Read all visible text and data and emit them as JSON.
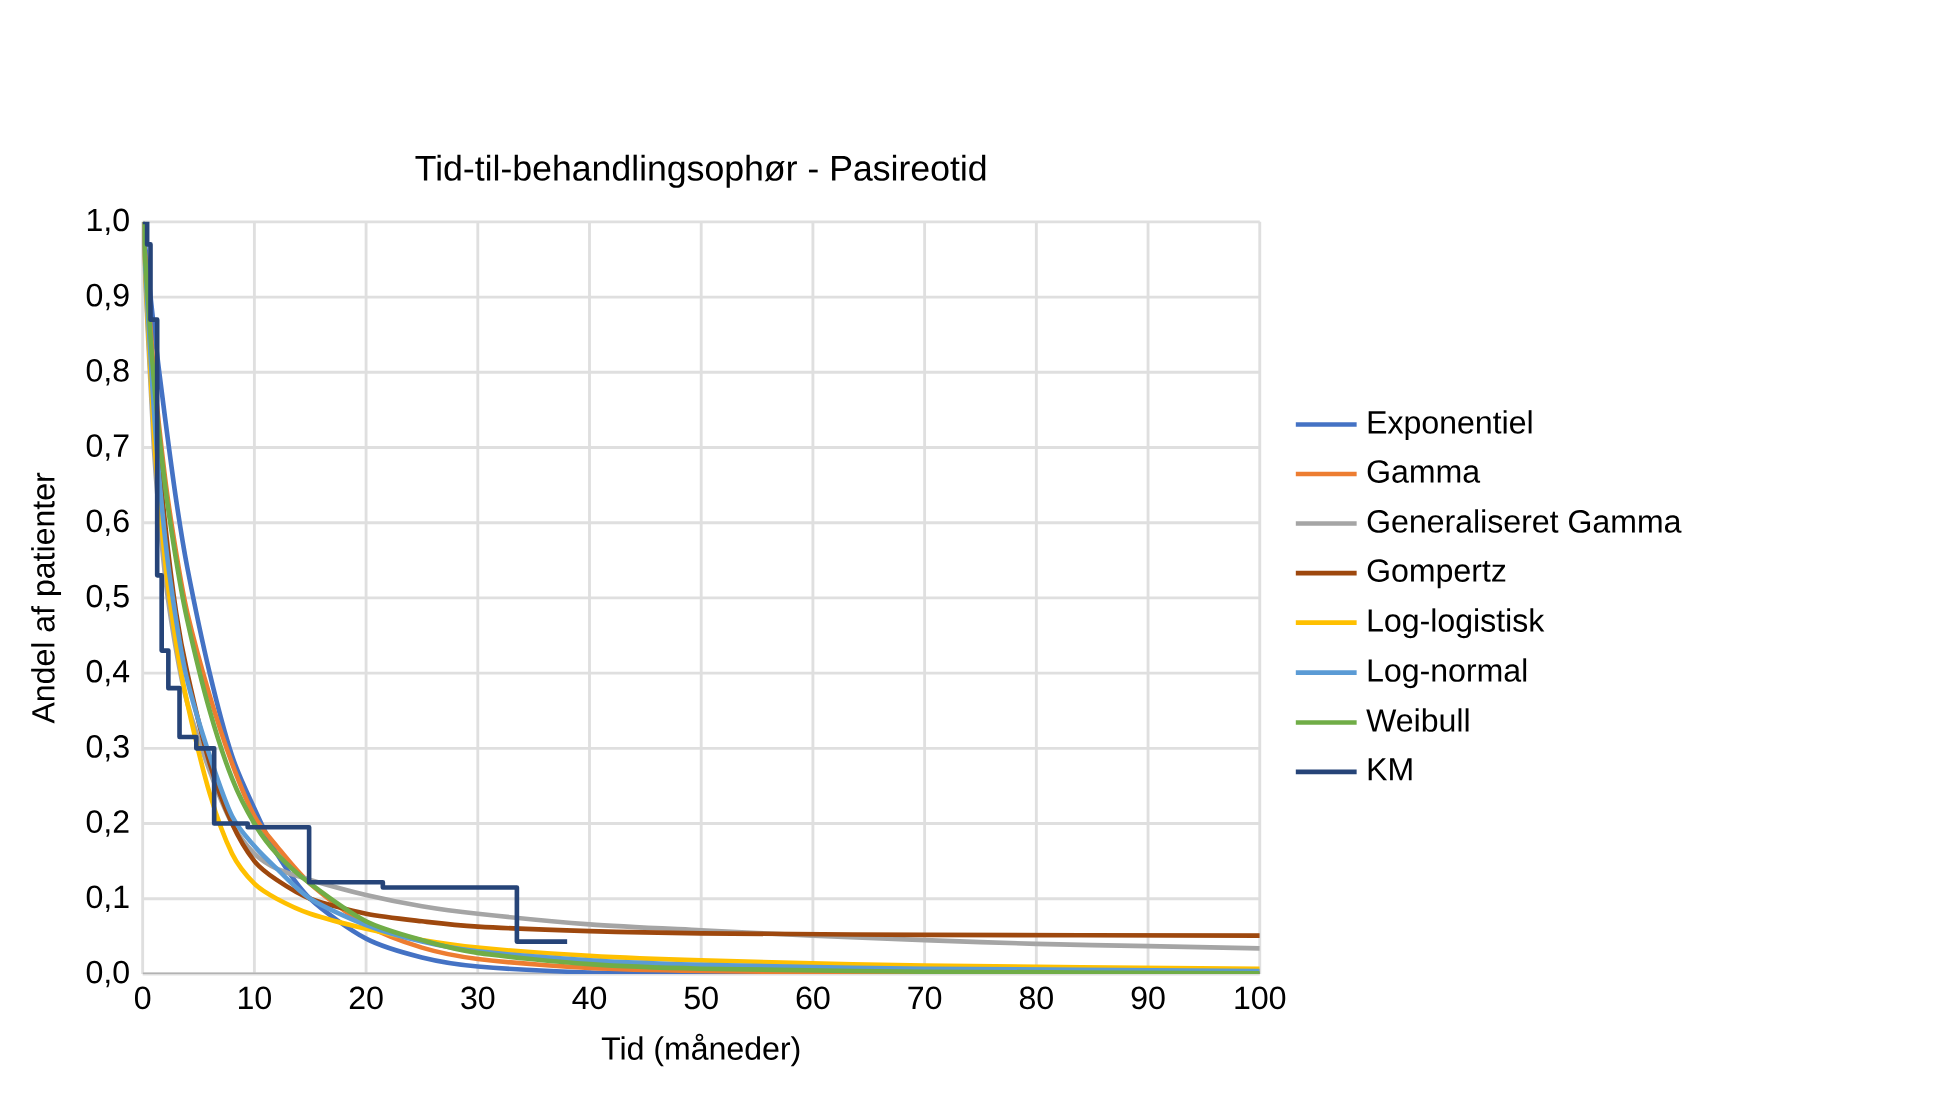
{
  "chart_data": {
    "type": "line",
    "title": "Tid-til-behandlingsophør - Pasireotid",
    "xlabel": "Tid (måneder)",
    "ylabel": "Andel af patienter",
    "xlim": [
      0,
      100
    ],
    "ylim": [
      0,
      1
    ],
    "grid": true,
    "legend": "right",
    "marker": "none",
    "xticks": [
      0,
      10,
      20,
      30,
      40,
      50,
      60,
      70,
      80,
      90,
      100
    ],
    "yticks": [
      {
        "value": 0,
        "label": "0,0"
      },
      {
        "value": 0.1,
        "label": "0,1"
      },
      {
        "value": 0.2,
        "label": "0,2"
      },
      {
        "value": 0.3,
        "label": "0,3"
      },
      {
        "value": 0.4,
        "label": "0,4"
      },
      {
        "value": 0.5,
        "label": "0,5"
      },
      {
        "value": 0.6,
        "label": "0,6"
      },
      {
        "value": 0.7,
        "label": "0,7"
      },
      {
        "value": 0.8,
        "label": "0,8"
      },
      {
        "value": 0.9,
        "label": "0,9"
      },
      {
        "value": 1,
        "label": "1,0"
      }
    ],
    "series": [
      {
        "name": "Exponentiel",
        "color": "#4472c4",
        "x": [
          0,
          1,
          2,
          3,
          4,
          6,
          8,
          10,
          12,
          15,
          20,
          25,
          30,
          40,
          50,
          70,
          100
        ],
        "values": [
          1,
          0.86,
          0.74,
          0.63,
          0.54,
          0.4,
          0.29,
          0.22,
          0.16,
          0.1,
          0.047,
          0.022,
          0.01,
          0.002,
          0.001,
          0,
          0
        ]
      },
      {
        "name": "Gamma",
        "color": "#ed7d31",
        "x": [
          0,
          1,
          2,
          3,
          4,
          6,
          8,
          10,
          12,
          15,
          20,
          25,
          30,
          40,
          50,
          70,
          100
        ],
        "values": [
          1,
          0.8,
          0.66,
          0.56,
          0.48,
          0.37,
          0.28,
          0.21,
          0.17,
          0.12,
          0.065,
          0.035,
          0.02,
          0.008,
          0.004,
          0.001,
          0
        ]
      },
      {
        "name": "Generaliseret Gamma",
        "color": "#a5a5a5",
        "x": [
          0,
          1,
          2,
          3,
          4,
          6,
          8,
          10,
          12,
          15,
          20,
          25,
          30,
          40,
          50,
          60,
          70,
          80,
          90,
          100
        ],
        "values": [
          1,
          0.7,
          0.53,
          0.43,
          0.36,
          0.27,
          0.2,
          0.16,
          0.14,
          0.125,
          0.105,
          0.09,
          0.08,
          0.066,
          0.058,
          0.051,
          0.045,
          0.04,
          0.037,
          0.034
        ]
      },
      {
        "name": "Gompertz",
        "color": "#9e480e",
        "x": [
          0,
          1,
          2,
          3,
          4,
          6,
          8,
          10,
          12,
          15,
          20,
          25,
          30,
          40,
          50,
          70,
          100
        ],
        "values": [
          1,
          0.76,
          0.6,
          0.48,
          0.4,
          0.28,
          0.2,
          0.15,
          0.125,
          0.1,
          0.08,
          0.07,
          0.063,
          0.057,
          0.054,
          0.052,
          0.051
        ]
      },
      {
        "name": "Log-logistisk",
        "color": "#ffc000",
        "x": [
          0,
          1,
          2,
          3,
          4,
          6,
          8,
          10,
          12,
          15,
          20,
          25,
          30,
          40,
          50,
          70,
          100
        ],
        "values": [
          1,
          0.72,
          0.55,
          0.44,
          0.36,
          0.24,
          0.16,
          0.12,
          0.1,
          0.08,
          0.06,
          0.045,
          0.035,
          0.024,
          0.018,
          0.011,
          0.007
        ]
      },
      {
        "name": "Log-normal",
        "color": "#5b9bd5",
        "x": [
          0,
          1,
          2,
          3,
          4,
          6,
          8,
          10,
          12,
          15,
          20,
          25,
          30,
          40,
          50,
          70,
          100
        ],
        "values": [
          1,
          0.75,
          0.58,
          0.47,
          0.39,
          0.29,
          0.21,
          0.17,
          0.14,
          0.1,
          0.065,
          0.043,
          0.03,
          0.018,
          0.012,
          0.007,
          0.004
        ]
      },
      {
        "name": "Weibull",
        "color": "#70ad47",
        "x": [
          0,
          1,
          2,
          3,
          4,
          6,
          8,
          10,
          12,
          15,
          20,
          25,
          30,
          40,
          50,
          70,
          100
        ],
        "values": [
          1,
          0.79,
          0.65,
          0.55,
          0.47,
          0.35,
          0.26,
          0.2,
          0.16,
          0.12,
          0.07,
          0.045,
          0.028,
          0.013,
          0.007,
          0.003,
          0.001
        ]
      },
      {
        "name": "KM",
        "color": "#264478",
        "type": "step",
        "x": [
          0,
          0.4,
          0.7,
          1.3,
          1.7,
          2.3,
          3.3,
          4.8,
          6.4,
          9.4,
          14.9,
          21.5,
          33.5,
          38
        ],
        "values": [
          1,
          0.97,
          0.87,
          0.53,
          0.43,
          0.38,
          0.315,
          0.3,
          0.2,
          0.195,
          0.122,
          0.115,
          0.043,
          0.043
        ]
      }
    ]
  }
}
